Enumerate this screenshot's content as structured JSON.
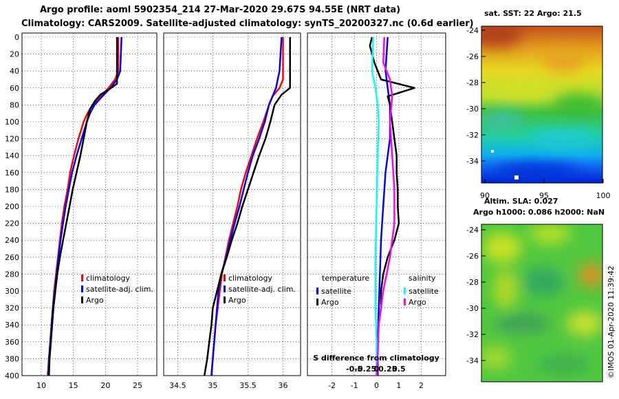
{
  "header": {
    "title_line1": "Argo profile: aoml 5902354_214 27-Mar-2020 29.67S 94.55E (NRT data)",
    "title_line2": "Climatology: CARS2009. Satellite-adjusted climatology: synTS_20200327.nc (0.6d earlier)"
  },
  "colors": {
    "climatology": "#ff0000",
    "satellite": "#0000ff",
    "argo": "#000000",
    "sal_satellite": "#00ffff",
    "sal_argo": "#ff00ff"
  },
  "chart_data": [
    {
      "type": "line",
      "name": "temperature-profile",
      "y_ticks": [
        "0",
        "20",
        "40",
        "60",
        "80",
        "100",
        "120",
        "140",
        "160",
        "180",
        "200",
        "220",
        "240",
        "260",
        "280",
        "300",
        "320",
        "340",
        "360",
        "380",
        "400"
      ],
      "x_ticks": [
        {
          "v": 10,
          "label": "10"
        },
        {
          "v": 15,
          "label": "15"
        },
        {
          "v": 20,
          "label": "20"
        },
        {
          "v": 25,
          "label": "25"
        }
      ],
      "xlim": [
        7,
        28
      ],
      "ylim": [
        0,
        400
      ],
      "legend": [
        "climatology",
        "satellite-adj. clim.",
        "Argo"
      ],
      "series": [
        {
          "name": "climatology",
          "color": "#ff0000",
          "points": [
            [
              22,
              0
            ],
            [
              22,
              40
            ],
            [
              21.5,
              50
            ],
            [
              20.5,
              60
            ],
            [
              19.2,
              70
            ],
            [
              18,
              80
            ],
            [
              17.2,
              90
            ],
            [
              16.6,
              100
            ],
            [
              15.8,
              120
            ],
            [
              15.1,
              140
            ],
            [
              14.5,
              160
            ],
            [
              14.1,
              180
            ],
            [
              13.6,
              200
            ],
            [
              13.2,
              220
            ],
            [
              12.9,
              240
            ],
            [
              12.6,
              260
            ],
            [
              12.3,
              280
            ],
            [
              12,
              300
            ],
            [
              11.8,
              320
            ],
            [
              11.6,
              340
            ],
            [
              11.4,
              360
            ],
            [
              11.2,
              380
            ],
            [
              11,
              400
            ]
          ]
        },
        {
          "name": "satellite-adj. clim.",
          "color": "#0000ff",
          "points": [
            [
              22.5,
              0
            ],
            [
              22.3,
              40
            ],
            [
              21.8,
              50
            ],
            [
              20.8,
              60
            ],
            [
              19.5,
              70
            ],
            [
              18.3,
              80
            ],
            [
              17.6,
              90
            ],
            [
              17.1,
              100
            ],
            [
              16.3,
              120
            ],
            [
              15.5,
              140
            ],
            [
              14.8,
              160
            ],
            [
              14.3,
              180
            ],
            [
              13.8,
              200
            ],
            [
              13.4,
              220
            ],
            [
              13,
              240
            ],
            [
              12.7,
              260
            ],
            [
              12.4,
              280
            ],
            [
              12.1,
              300
            ],
            [
              11.8,
              320
            ],
            [
              11.6,
              340
            ],
            [
              11.4,
              360
            ],
            [
              11.2,
              380
            ],
            [
              11.1,
              400
            ]
          ]
        },
        {
          "name": "Argo",
          "color": "#000000",
          "points": [
            [
              21.8,
              0
            ],
            [
              21.8,
              55
            ],
            [
              20.5,
              62
            ],
            [
              19.2,
              68
            ],
            [
              18.4,
              75
            ],
            [
              17.6,
              85
            ],
            [
              17.1,
              100
            ],
            [
              16.6,
              120
            ],
            [
              16.1,
              140
            ],
            [
              15.5,
              160
            ],
            [
              14.9,
              180
            ],
            [
              14.4,
              200
            ],
            [
              13.9,
              220
            ],
            [
              13.4,
              240
            ],
            [
              12.9,
              260
            ],
            [
              12.5,
              280
            ],
            [
              12.2,
              300
            ],
            [
              11.9,
              320
            ],
            [
              11.7,
              340
            ],
            [
              11.5,
              360
            ],
            [
              11.3,
              380
            ],
            [
              11.2,
              400
            ]
          ]
        }
      ]
    },
    {
      "type": "line",
      "name": "salinity-profile",
      "x_ticks": [
        {
          "v": 34.5,
          "label": "34.5"
        },
        {
          "v": 35,
          "label": "35"
        },
        {
          "v": 35.5,
          "label": "35.5"
        },
        {
          "v": 36,
          "label": "36"
        }
      ],
      "xlim": [
        34.3,
        36.25
      ],
      "ylim": [
        0,
        400
      ],
      "legend": [
        "climatology",
        "satellite-adj. clim.",
        "Argo"
      ],
      "series": [
        {
          "name": "climatology",
          "color": "#ff0000",
          "points": [
            [
              36,
              0
            ],
            [
              36,
              50
            ],
            [
              35.95,
              60
            ],
            [
              35.85,
              70
            ],
            [
              35.8,
              80
            ],
            [
              35.72,
              100
            ],
            [
              35.63,
              120
            ],
            [
              35.55,
              140
            ],
            [
              35.47,
              160
            ],
            [
              35.4,
              180
            ],
            [
              35.35,
              200
            ],
            [
              35.29,
              220
            ],
            [
              35.23,
              240
            ],
            [
              35.18,
              260
            ],
            [
              35.13,
              280
            ],
            [
              35.1,
              300
            ],
            [
              35.07,
              320
            ],
            [
              35.04,
              340
            ],
            [
              35.02,
              360
            ],
            [
              35,
              380
            ],
            [
              34.98,
              400
            ]
          ]
        },
        {
          "name": "satellite-adj. clim.",
          "color": "#0000ff",
          "points": [
            [
              35.98,
              0
            ],
            [
              35.95,
              40
            ],
            [
              35.9,
              60
            ],
            [
              35.85,
              70
            ],
            [
              35.8,
              80
            ],
            [
              35.74,
              100
            ],
            [
              35.66,
              120
            ],
            [
              35.57,
              140
            ],
            [
              35.5,
              160
            ],
            [
              35.44,
              180
            ],
            [
              35.38,
              200
            ],
            [
              35.31,
              220
            ],
            [
              35.25,
              240
            ],
            [
              35.19,
              260
            ],
            [
              35.12,
              280
            ],
            [
              35.08,
              300
            ],
            [
              35.06,
              320
            ],
            [
              35.04,
              340
            ],
            [
              35.02,
              360
            ],
            [
              35,
              380
            ],
            [
              34.98,
              400
            ]
          ]
        },
        {
          "name": "Argo",
          "color": "#000000",
          "points": [
            [
              36.1,
              0
            ],
            [
              36.1,
              60
            ],
            [
              35.98,
              68
            ],
            [
              35.88,
              80
            ],
            [
              35.82,
              100
            ],
            [
              35.75,
              120
            ],
            [
              35.66,
              140
            ],
            [
              35.58,
              160
            ],
            [
              35.5,
              180
            ],
            [
              35.42,
              200
            ],
            [
              35.35,
              220
            ],
            [
              35.27,
              240
            ],
            [
              35.2,
              260
            ],
            [
              35.12,
              280
            ],
            [
              35.06,
              300
            ],
            [
              35.0,
              320
            ],
            [
              34.98,
              340
            ],
            [
              34.95,
              360
            ],
            [
              34.92,
              380
            ],
            [
              34.88,
              400
            ]
          ]
        }
      ]
    },
    {
      "type": "line",
      "name": "difference-from-climatology",
      "x_ticks": [
        {
          "v": -2,
          "label": "-2"
        },
        {
          "v": -1,
          "label": "-1"
        },
        {
          "v": 0,
          "label": "0"
        },
        {
          "v": 1,
          "label": "1"
        },
        {
          "v": 2,
          "label": "2"
        }
      ],
      "salinity_ticks": [
        {
          "v": -1,
          "label": "-0.5"
        },
        {
          "v": -0.5,
          "label": "-0.25"
        },
        {
          "v": 0,
          "label": "0"
        },
        {
          "v": 0.5,
          "label": "0.25"
        },
        {
          "v": 1,
          "label": "0.5"
        }
      ],
      "xlim": [
        -3.1,
        3.1
      ],
      "ylim": [
        0,
        400
      ],
      "xlabel": "S difference from climatology",
      "legend_temperature": {
        "title": "temperature",
        "items": [
          "satellite",
          "Argo"
        ]
      },
      "legend_salinity": {
        "title": "salinity",
        "items": [
          "satellite",
          "Argo"
        ]
      },
      "series": [
        {
          "name": "temperature satellite",
          "color": "#0000ff",
          "points": [
            [
              0.5,
              0
            ],
            [
              0.4,
              40
            ],
            [
              0.5,
              60
            ],
            [
              0.6,
              80
            ],
            [
              0.6,
              100
            ],
            [
              0.6,
              120
            ],
            [
              0.5,
              140
            ],
            [
              0.4,
              160
            ],
            [
              0.3,
              200
            ],
            [
              0.2,
              240
            ],
            [
              0.15,
              280
            ],
            [
              0.1,
              320
            ],
            [
              0.05,
              360
            ],
            [
              0.05,
              400
            ]
          ]
        },
        {
          "name": "temperature Argo",
          "color": "#000000",
          "points": [
            [
              -0.2,
              0
            ],
            [
              -0.3,
              10
            ],
            [
              -0.1,
              30
            ],
            [
              0.2,
              50
            ],
            [
              1.7,
              60
            ],
            [
              0.5,
              70
            ],
            [
              0.6,
              80
            ],
            [
              0.7,
              100
            ],
            [
              0.8,
              120
            ],
            [
              0.9,
              140
            ],
            [
              0.9,
              160
            ],
            [
              0.95,
              180
            ],
            [
              0.95,
              200
            ],
            [
              1,
              220
            ],
            [
              0.8,
              240
            ],
            [
              0.5,
              260
            ],
            [
              0.3,
              280
            ],
            [
              0.2,
              300
            ],
            [
              0.2,
              320
            ],
            [
              0.1,
              340
            ],
            [
              0.05,
              360
            ],
            [
              0.05,
              380
            ],
            [
              0.05,
              400
            ]
          ]
        },
        {
          "name": "salinity satellite",
          "color": "#00ffff",
          "points": [
            [
              -0.15,
              0
            ],
            [
              -0.2,
              40
            ],
            [
              -0.05,
              60
            ],
            [
              0.05,
              80
            ],
            [
              0.1,
              100
            ],
            [
              0.05,
              140
            ],
            [
              0,
              200
            ],
            [
              -0.05,
              260
            ],
            [
              -0.05,
              320
            ],
            [
              0,
              360
            ],
            [
              0,
              400
            ]
          ]
        },
        {
          "name": "salinity Argo",
          "color": "#ff00ff",
          "points": [
            [
              0.35,
              0
            ],
            [
              0.3,
              30
            ],
            [
              0.6,
              50
            ],
            [
              0.7,
              70
            ],
            [
              0.6,
              100
            ],
            [
              0.7,
              140
            ],
            [
              0.8,
              180
            ],
            [
              0.8,
              220
            ],
            [
              0.6,
              260
            ],
            [
              0.3,
              300
            ],
            [
              0.1,
              340
            ],
            [
              0.05,
              380
            ],
            [
              0,
              400
            ]
          ]
        }
      ]
    },
    {
      "type": "heatmap",
      "name": "sat-sst-map",
      "title": "sat. SST: 22 Argo: 21.5",
      "y_ticks": [
        "-24",
        "-26",
        "-28",
        "-30",
        "-32",
        "-34"
      ],
      "x_ticks": [
        "90",
        "95",
        "100"
      ]
    },
    {
      "type": "heatmap",
      "name": "altim-sla-map",
      "title_line1": "Altim. SLA: 0.027",
      "title_line2": "Argo h1000: 0.086 h2000: NaN",
      "y_ticks": [
        "-24",
        "-26",
        "-28",
        "-30",
        "-32",
        "-34"
      ]
    }
  ],
  "footer": {
    "credit": "©IMOS 01-Apr-2020 11:39:42"
  }
}
